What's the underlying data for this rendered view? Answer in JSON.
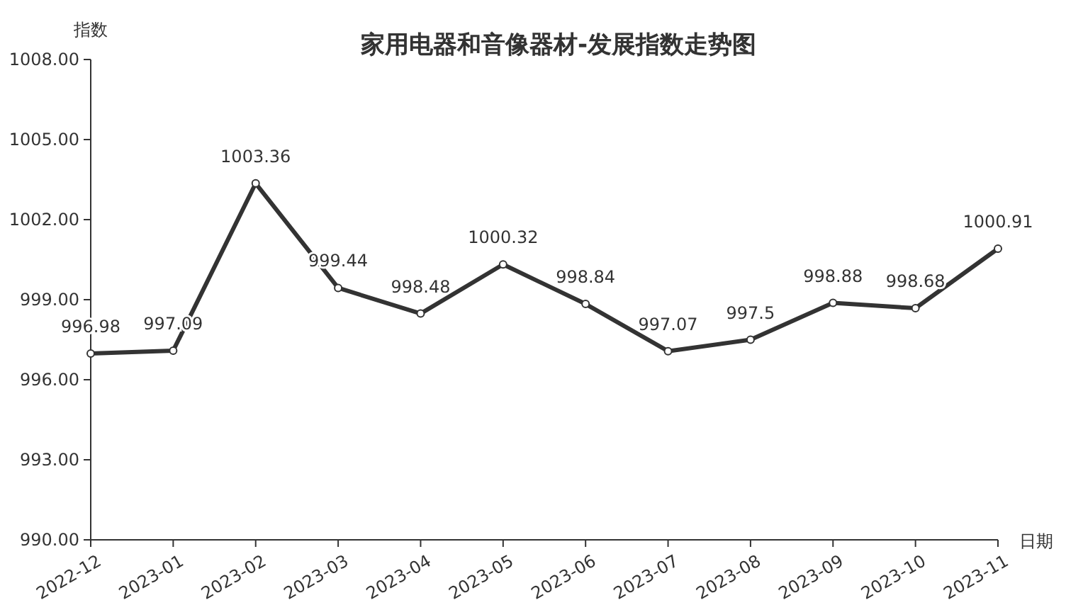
{
  "chart_data": {
    "type": "line",
    "title": "家用电器和音像器材-发展指数走势图",
    "xlabel": "日期",
    "ylabel": "指数",
    "categories": [
      "2022-12",
      "2023-01",
      "2023-02",
      "2023-03",
      "2023-04",
      "2023-05",
      "2023-06",
      "2023-07",
      "2023-08",
      "2023-09",
      "2023-10",
      "2023-11"
    ],
    "series": [
      {
        "color": "#333333",
        "values": [
          996.98,
          997.09,
          1003.36,
          999.44,
          998.48,
          1000.32,
          998.84,
          997.07,
          997.5,
          998.88,
          998.68,
          1000.91
        ]
      }
    ],
    "ylim": [
      990,
      1008
    ],
    "yticks": [
      {
        "value": 990,
        "label": "990.00"
      },
      {
        "value": 993,
        "label": "993.00"
      },
      {
        "value": 996,
        "label": "996.00"
      },
      {
        "value": 999,
        "label": "999.00"
      },
      {
        "value": 1002,
        "label": "1002.00"
      },
      {
        "value": 1005,
        "label": "1005.00"
      },
      {
        "value": 1008,
        "label": "1008.00"
      }
    ],
    "data_labels": true,
    "marker": "circle",
    "line_style": "solid",
    "grid": false
  }
}
